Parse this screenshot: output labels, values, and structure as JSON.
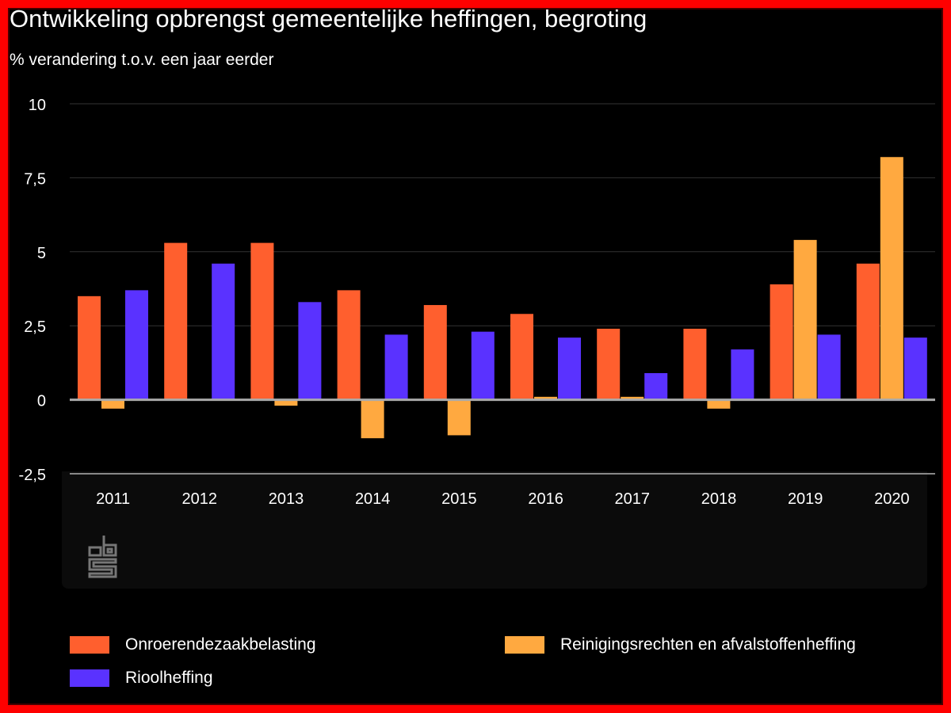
{
  "chart_data": {
    "type": "bar",
    "title": "Ontwikkeling opbrengst gemeentelijke heffingen, begroting",
    "subtitle": "% verandering t.o.v. een jaar eerder",
    "categories": [
      "2011",
      "2012",
      "2013",
      "2014",
      "2015",
      "2016",
      "2017",
      "2018",
      "2019",
      "2020"
    ],
    "ylim": [
      -2.5,
      10
    ],
    "yticks": [
      -2.5,
      0,
      2.5,
      5,
      7.5,
      10
    ],
    "ytick_labels": [
      "-2,5",
      "0",
      "2,5",
      "5",
      "7,5",
      "10"
    ],
    "grid": true,
    "legend_position": "bottom",
    "series": [
      {
        "name": "Onroerendezaakbelasting",
        "color": "#ff5f2e",
        "values": [
          3.5,
          5.3,
          5.3,
          3.7,
          3.2,
          2.9,
          2.4,
          2.4,
          3.9,
          4.6
        ]
      },
      {
        "name": "Reinigingsrechten en afvalstoffenheffing",
        "color": "#ffa940",
        "values": [
          -0.3,
          0,
          -0.2,
          -1.3,
          -1.2,
          0.1,
          0.1,
          -0.3,
          5.4,
          8.2
        ]
      },
      {
        "name": "Rioolheffing",
        "color": "#5a32ff",
        "values": [
          3.7,
          4.6,
          3.3,
          2.2,
          2.3,
          2.1,
          0.9,
          1.7,
          2.2,
          2.1
        ]
      }
    ]
  },
  "logo_text": "cbs"
}
